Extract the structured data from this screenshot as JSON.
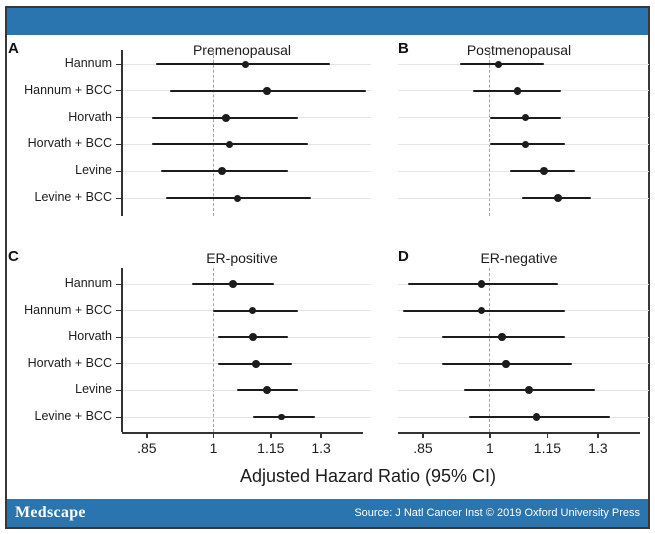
{
  "branding": {
    "bar_color": "#2a74b0",
    "border_color": "#383838"
  },
  "footer": {
    "logo_text": "Medscape",
    "source_text": "Source: J Natl Cancer Inst © 2019 Oxford University Press"
  },
  "chart_data": {
    "type": "scatter",
    "subtype": "forest-plot",
    "xlabel": "Adjusted Hazard Ratio (95% CI)",
    "x_scale": "log",
    "xlim": [
      0.8,
      1.44
    ],
    "x_ticks": [
      0.85,
      1,
      1.15,
      1.3
    ],
    "x_tick_labels": [
      ".85",
      "1",
      "1.15",
      "1.3"
    ],
    "ref_line": 1,
    "grid": true,
    "legend": "none",
    "categories": [
      "Hannum",
      "Hannum + BCC",
      "Horvath",
      "Horvath + BCC",
      "Levine",
      "Levine + BCC"
    ],
    "colors": {
      "marker": "#1c1c1c",
      "ci_line": "#1c1c1c",
      "gridline": "#e4e4e4",
      "ref_line": "#a3a3a3",
      "axis": "#333333"
    },
    "panels": [
      {
        "label": "A",
        "title": "Premenopausal",
        "points": [
          {
            "hr": 1.08,
            "lo": 0.87,
            "hi": 1.33,
            "size": 7
          },
          {
            "hr": 1.14,
            "lo": 0.9,
            "hi": 1.45,
            "size": 7.5
          },
          {
            "hr": 1.03,
            "lo": 0.86,
            "hi": 1.23,
            "size": 8
          },
          {
            "hr": 1.04,
            "lo": 0.86,
            "hi": 1.26,
            "size": 7
          },
          {
            "hr": 1.02,
            "lo": 0.88,
            "hi": 1.2,
            "size": 8
          },
          {
            "hr": 1.06,
            "lo": 0.89,
            "hi": 1.27,
            "size": 7
          }
        ]
      },
      {
        "label": "B",
        "title": "Postmenopausal",
        "points": [
          {
            "hr": 1.02,
            "lo": 0.93,
            "hi": 1.14,
            "size": 7
          },
          {
            "hr": 1.07,
            "lo": 0.96,
            "hi": 1.19,
            "size": 7.5
          },
          {
            "hr": 1.09,
            "lo": 1.0,
            "hi": 1.19,
            "size": 7.5
          },
          {
            "hr": 1.09,
            "lo": 1.0,
            "hi": 1.2,
            "size": 7.5
          },
          {
            "hr": 1.14,
            "lo": 1.05,
            "hi": 1.23,
            "size": 8
          },
          {
            "hr": 1.18,
            "lo": 1.08,
            "hi": 1.28,
            "size": 8
          }
        ]
      },
      {
        "label": "C",
        "title": "ER-positive",
        "points": [
          {
            "hr": 1.05,
            "lo": 0.95,
            "hi": 1.16,
            "size": 8
          },
          {
            "hr": 1.1,
            "lo": 1.0,
            "hi": 1.23,
            "size": 7.5
          },
          {
            "hr": 1.1,
            "lo": 1.01,
            "hi": 1.2,
            "size": 8
          },
          {
            "hr": 1.11,
            "lo": 1.01,
            "hi": 1.21,
            "size": 8
          },
          {
            "hr": 1.14,
            "lo": 1.06,
            "hi": 1.23,
            "size": 8
          },
          {
            "hr": 1.18,
            "lo": 1.1,
            "hi": 1.28,
            "size": 6.5
          }
        ]
      },
      {
        "label": "D",
        "title": "ER-negative",
        "points": [
          {
            "hr": 0.98,
            "lo": 0.82,
            "hi": 1.18,
            "size": 7.5
          },
          {
            "hr": 0.98,
            "lo": 0.81,
            "hi": 1.2,
            "size": 7
          },
          {
            "hr": 1.03,
            "lo": 0.89,
            "hi": 1.2,
            "size": 7.5
          },
          {
            "hr": 1.04,
            "lo": 0.89,
            "hi": 1.22,
            "size": 7.5
          },
          {
            "hr": 1.1,
            "lo": 0.94,
            "hi": 1.29,
            "size": 8
          },
          {
            "hr": 1.12,
            "lo": 0.95,
            "hi": 1.34,
            "size": 7.5
          }
        ]
      }
    ]
  }
}
